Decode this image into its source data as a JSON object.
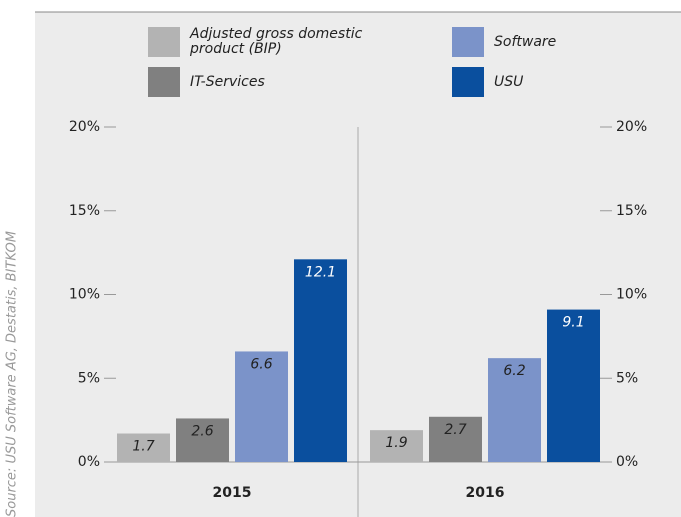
{
  "chart_data": {
    "type": "bar",
    "source": "Source: USU Software AG, Destatis, BITKOM",
    "categories": [
      "2015",
      "2016"
    ],
    "series": [
      {
        "name": "Adjusted gross domestic product (BIP)",
        "color": "#b3b3b3",
        "values": [
          1.7,
          1.9
        ]
      },
      {
        "name": "IT-Services",
        "color": "#808080",
        "values": [
          2.6,
          2.7
        ]
      },
      {
        "name": "Software",
        "color": "#7b93c9",
        "values": [
          6.6,
          6.2
        ]
      },
      {
        "name": "USU",
        "color": "#0a4f9e",
        "values": [
          12.1,
          9.1
        ]
      }
    ],
    "ylim": [
      0,
      20
    ],
    "yticks": [
      {
        "value": 0,
        "label": "0%"
      },
      {
        "value": 5,
        "label": "5%"
      },
      {
        "value": 10,
        "label": "10%"
      },
      {
        "value": 15,
        "label": "15%"
      },
      {
        "value": 20,
        "label": "20%"
      }
    ]
  }
}
